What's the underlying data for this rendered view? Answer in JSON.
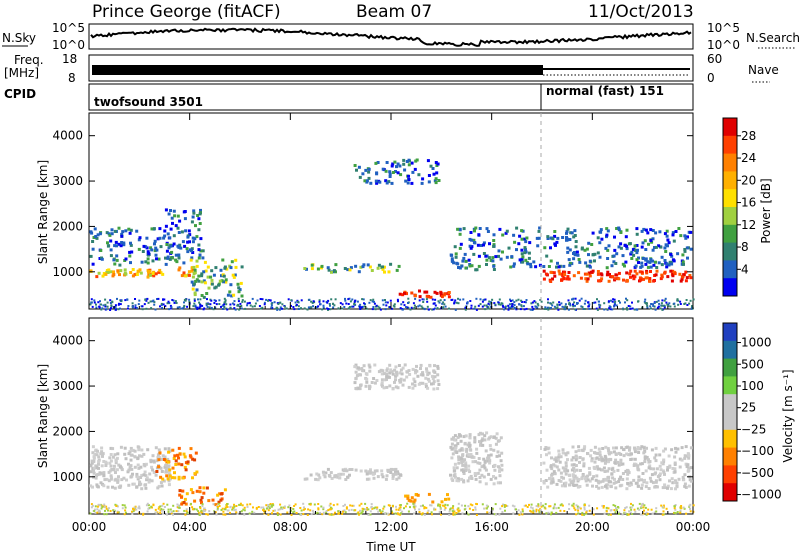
{
  "header": {
    "station": "Prince George (fitACF)",
    "beam": "Beam 07",
    "date": "11/Oct/2013"
  },
  "aux_panels": {
    "nsky": {
      "label": "N.Sky",
      "ticks": [
        "10^5",
        "10^0"
      ],
      "right_label": "N.Search",
      "right_ticks": [
        "10^5",
        "10^0"
      ]
    },
    "freq": {
      "label_line1": "Freq.",
      "label_line2": "[MHz]",
      "ticks": [
        "18",
        "8"
      ],
      "right_label": "Nave",
      "right_ticks": [
        "60",
        "0"
      ]
    },
    "cpid": {
      "label": "CPID",
      "mode1": "twofsound 3501",
      "mode2": "normal (fast) 151"
    }
  },
  "chart_data": [
    {
      "type": "heatmap",
      "panel": "power",
      "ylabel": "Slant Range [km]",
      "xlabel": "",
      "x_ticks": [
        "00:00",
        "04:00",
        "08:00",
        "12:00",
        "16:00",
        "20:00",
        "00:00"
      ],
      "x_range_hours": [
        0,
        24
      ],
      "y_range_km": [
        180,
        4500
      ],
      "y_ticks": [
        1000,
        2000,
        3000,
        4000
      ],
      "colorbar": {
        "label": "Power [dB]",
        "ticks": [
          "28",
          "24",
          "20",
          "16",
          "12",
          "8",
          "4"
        ],
        "colors": [
          "#e00000",
          "#ff4000",
          "#ff8000",
          "#ffb000",
          "#ffe000",
          "#a0d040",
          "#40a040",
          "#308070",
          "#2060c0",
          "#0000f0"
        ]
      },
      "scatter_bands": [
        {
          "x0": 0.0,
          "x1": 3.0,
          "y0": 850,
          "y1": 1100,
          "level": "high"
        },
        {
          "x0": 0.0,
          "x1": 3.4,
          "y0": 1100,
          "y1": 2000,
          "level": "low"
        },
        {
          "x0": 3.5,
          "x1": 4.3,
          "y0": 850,
          "y1": 1150,
          "level": "high"
        },
        {
          "x0": 3.0,
          "x1": 4.6,
          "y0": 1150,
          "y1": 2400,
          "level": "low"
        },
        {
          "x0": 4.0,
          "x1": 6.2,
          "y0": 400,
          "y1": 1300,
          "level": "mid"
        },
        {
          "x0": 12.3,
          "x1": 14.5,
          "y0": 400,
          "y1": 620,
          "level": "max"
        },
        {
          "x0": 8.5,
          "x1": 12.5,
          "y0": 950,
          "y1": 1200,
          "level": "mid"
        },
        {
          "x0": 14.3,
          "x1": 16.5,
          "y0": 1000,
          "y1": 2000,
          "level": "low"
        },
        {
          "x0": 18.0,
          "x1": 24.0,
          "y0": 750,
          "y1": 1050,
          "level": "max"
        },
        {
          "x0": 16.5,
          "x1": 24.0,
          "y0": 1050,
          "y1": 2000,
          "level": "low"
        },
        {
          "x0": 10.5,
          "x1": 14.0,
          "y0": 2900,
          "y1": 3500,
          "level": "low"
        }
      ],
      "series": []
    },
    {
      "type": "heatmap",
      "panel": "velocity",
      "ylabel": "Slant Range [km]",
      "xlabel": "Time UT",
      "x_ticks": [
        "00:00",
        "04:00",
        "08:00",
        "12:00",
        "16:00",
        "20:00",
        "00:00"
      ],
      "x_range_hours": [
        0,
        24
      ],
      "y_range_km": [
        180,
        4500
      ],
      "y_ticks": [
        1000,
        2000,
        3000,
        4000
      ],
      "colorbar": {
        "label": "Velocity [m s⁻¹]",
        "ticks": [
          "1000",
          "500",
          "100",
          "25",
          "−25",
          "−100",
          "−500",
          "−1000"
        ],
        "colors": [
          "#2040c0",
          "#2070a0",
          "#40a040",
          "#70d040",
          "#c8c8c8",
          "#c8c8c8",
          "#ffc000",
          "#ff8000",
          "#ff4000",
          "#e00000"
        ]
      },
      "scatter_bands": [
        {
          "x0": 0.0,
          "x1": 3.3,
          "y0": 700,
          "y1": 1700,
          "level": "gray"
        },
        {
          "x0": 2.6,
          "x1": 4.4,
          "y0": 900,
          "y1": 1700,
          "level": "neg"
        },
        {
          "x0": 3.5,
          "x1": 5.5,
          "y0": 350,
          "y1": 800,
          "level": "neg"
        },
        {
          "x0": 12.5,
          "x1": 14.4,
          "y0": 400,
          "y1": 650,
          "level": "posorange"
        },
        {
          "x0": 8.5,
          "x1": 12.5,
          "y0": 900,
          "y1": 1200,
          "level": "gray"
        },
        {
          "x0": 14.3,
          "x1": 16.5,
          "y0": 800,
          "y1": 2000,
          "level": "gray"
        },
        {
          "x0": 18.0,
          "x1": 24.0,
          "y0": 700,
          "y1": 1700,
          "level": "gray"
        },
        {
          "x0": 10.5,
          "x1": 14.0,
          "y0": 2900,
          "y1": 3500,
          "level": "gray"
        }
      ],
      "series": []
    }
  ]
}
